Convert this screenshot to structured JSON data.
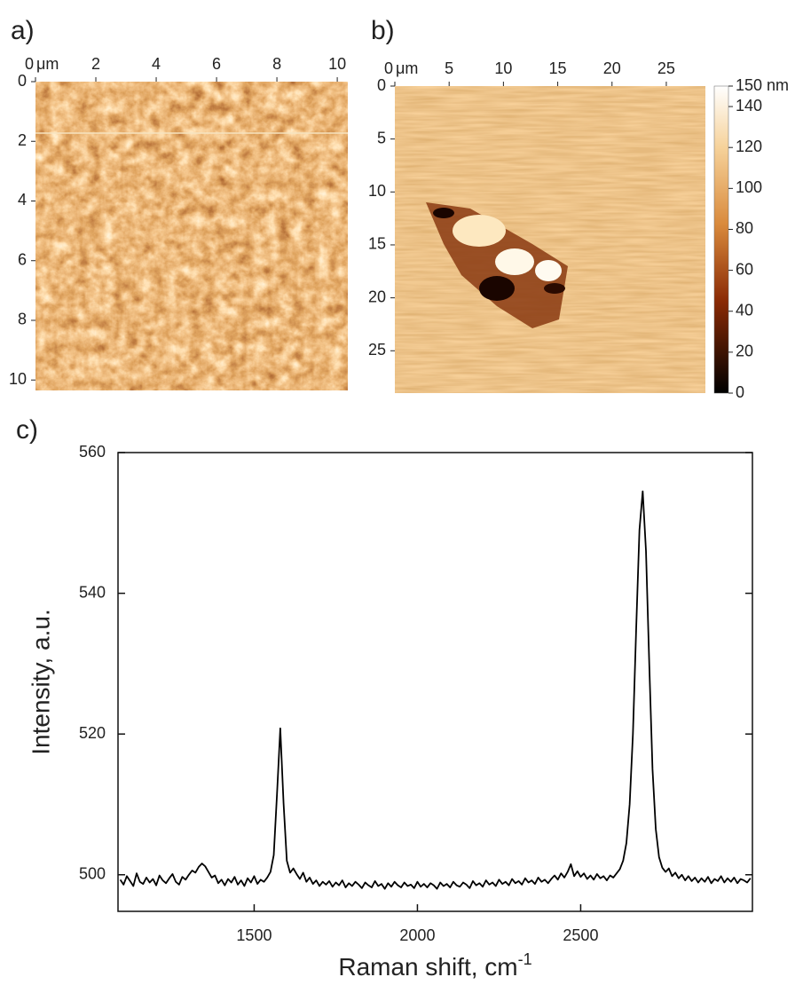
{
  "chart_data": [
    {
      "type": "image",
      "label": "a)",
      "x_unit": "μm",
      "xlim": [
        0,
        10.35
      ],
      "xticks": [
        0,
        2,
        4,
        6,
        8,
        10
      ],
      "ylim": [
        0,
        10.35
      ],
      "yticks": [
        0,
        2,
        4,
        6,
        8,
        10
      ]
    },
    {
      "type": "image",
      "label": "b)",
      "x_unit": "μm",
      "xlim": [
        0,
        28.6
      ],
      "xticks": [
        0,
        5,
        10,
        15,
        20,
        25
      ],
      "ylim": [
        0,
        29
      ],
      "yticks": [
        0,
        5,
        10,
        15,
        20,
        25
      ],
      "colorbar": {
        "lim": [
          0,
          150
        ],
        "ticks": [
          0,
          20,
          40,
          60,
          80,
          100,
          120,
          140,
          {
            "value": 150,
            "label": "150 nm"
          }
        ]
      }
    },
    {
      "type": "line",
      "label": "c)",
      "x_label": "Raman shift, cm",
      "x_label_sup": "-1",
      "y_label": "Intensity, a.u.",
      "color": "#000000",
      "xlim": [
        1083,
        3026
      ],
      "xticks": [
        1500,
        2000,
        2500
      ],
      "ylim": [
        494.8,
        560
      ],
      "yticks": [
        500,
        520,
        540,
        560
      ],
      "x": [
        1090,
        1100,
        1110,
        1120,
        1130,
        1140,
        1150,
        1160,
        1170,
        1180,
        1190,
        1200,
        1210,
        1220,
        1230,
        1240,
        1250,
        1260,
        1270,
        1280,
        1290,
        1300,
        1310,
        1320,
        1330,
        1340,
        1350,
        1360,
        1370,
        1380,
        1390,
        1400,
        1410,
        1420,
        1430,
        1440,
        1450,
        1460,
        1470,
        1480,
        1490,
        1500,
        1510,
        1520,
        1530,
        1540,
        1550,
        1560,
        1570,
        1580,
        1590,
        1600,
        1610,
        1620,
        1630,
        1640,
        1650,
        1660,
        1670,
        1680,
        1690,
        1700,
        1710,
        1720,
        1730,
        1740,
        1750,
        1760,
        1770,
        1780,
        1790,
        1800,
        1810,
        1820,
        1830,
        1840,
        1850,
        1860,
        1870,
        1880,
        1890,
        1900,
        1910,
        1920,
        1930,
        1940,
        1950,
        1960,
        1970,
        1980,
        1990,
        2000,
        2010,
        2020,
        2030,
        2040,
        2050,
        2060,
        2070,
        2080,
        2090,
        2100,
        2110,
        2120,
        2130,
        2140,
        2150,
        2160,
        2170,
        2180,
        2190,
        2200,
        2210,
        2220,
        2230,
        2240,
        2250,
        2260,
        2270,
        2280,
        2290,
        2300,
        2310,
        2320,
        2330,
        2340,
        2350,
        2360,
        2370,
        2380,
        2390,
        2400,
        2410,
        2420,
        2430,
        2440,
        2450,
        2460,
        2470,
        2480,
        2490,
        2500,
        2510,
        2520,
        2530,
        2540,
        2550,
        2560,
        2570,
        2580,
        2590,
        2600,
        2610,
        2620,
        2630,
        2640,
        2650,
        2660,
        2670,
        2680,
        2690,
        2700,
        2710,
        2720,
        2730,
        2740,
        2750,
        2760,
        2770,
        2780,
        2790,
        2800,
        2810,
        2820,
        2830,
        2840,
        2850,
        2860,
        2870,
        2880,
        2890,
        2900,
        2910,
        2920,
        2930,
        2940,
        2950,
        2960,
        2970,
        2980,
        2990,
        3000,
        3010,
        3020
      ],
      "values": [
        499.3,
        498.6,
        499.8,
        499.1,
        498.4,
        500.2,
        499.0,
        498.7,
        499.6,
        498.9,
        499.4,
        498.5,
        499.9,
        499.2,
        498.8,
        499.5,
        500.1,
        499.0,
        498.6,
        499.7,
        499.3,
        500.0,
        500.6,
        500.3,
        501.1,
        501.6,
        501.2,
        500.4,
        499.6,
        499.9,
        498.8,
        499.3,
        498.5,
        499.4,
        498.9,
        499.7,
        498.6,
        499.2,
        498.4,
        499.5,
        498.9,
        499.8,
        498.7,
        499.3,
        499.0,
        499.6,
        500.4,
        502.8,
        511.5,
        520.8,
        510.2,
        502.0,
        500.3,
        500.9,
        500.1,
        499.4,
        500.3,
        499.0,
        499.6,
        498.7,
        499.2,
        498.4,
        499.0,
        498.6,
        499.1,
        498.3,
        498.9,
        498.5,
        499.2,
        498.2,
        498.8,
        498.4,
        499.0,
        498.6,
        498.1,
        498.9,
        498.5,
        498.2,
        499.1,
        498.4,
        498.7,
        498.0,
        498.8,
        498.3,
        499.0,
        498.5,
        498.2,
        498.9,
        498.4,
        498.6,
        498.1,
        499.0,
        498.3,
        498.7,
        498.2,
        498.8,
        498.5,
        498.0,
        498.9,
        498.4,
        498.7,
        498.2,
        499.0,
        498.5,
        498.3,
        498.9,
        498.6,
        498.1,
        499.1,
        498.5,
        498.8,
        498.3,
        499.2,
        498.6,
        498.9,
        498.4,
        499.3,
        498.7,
        499.0,
        498.5,
        499.4,
        498.8,
        499.1,
        498.6,
        499.5,
        498.9,
        499.2,
        498.7,
        499.6,
        499.0,
        499.3,
        498.8,
        499.4,
        499.9,
        499.3,
        500.2,
        499.6,
        500.4,
        501.5,
        499.8,
        500.5,
        499.7,
        500.2,
        499.4,
        499.9,
        499.3,
        500.1,
        499.5,
        499.8,
        499.2,
        499.9,
        499.6,
        500.2,
        500.8,
        502.0,
        504.5,
        510.0,
        520.0,
        535.0,
        549.0,
        554.5,
        546.0,
        530.0,
        515.0,
        506.5,
        502.5,
        501.0,
        500.4,
        500.9,
        499.8,
        500.3,
        499.5,
        500.0,
        499.2,
        499.8,
        499.1,
        499.6,
        498.9,
        499.5,
        499.0,
        499.7,
        498.8,
        499.4,
        499.1,
        499.8,
        498.9,
        499.5,
        499.0,
        499.6,
        498.8,
        499.4,
        499.2,
        498.9,
        499.5
      ]
    }
  ]
}
